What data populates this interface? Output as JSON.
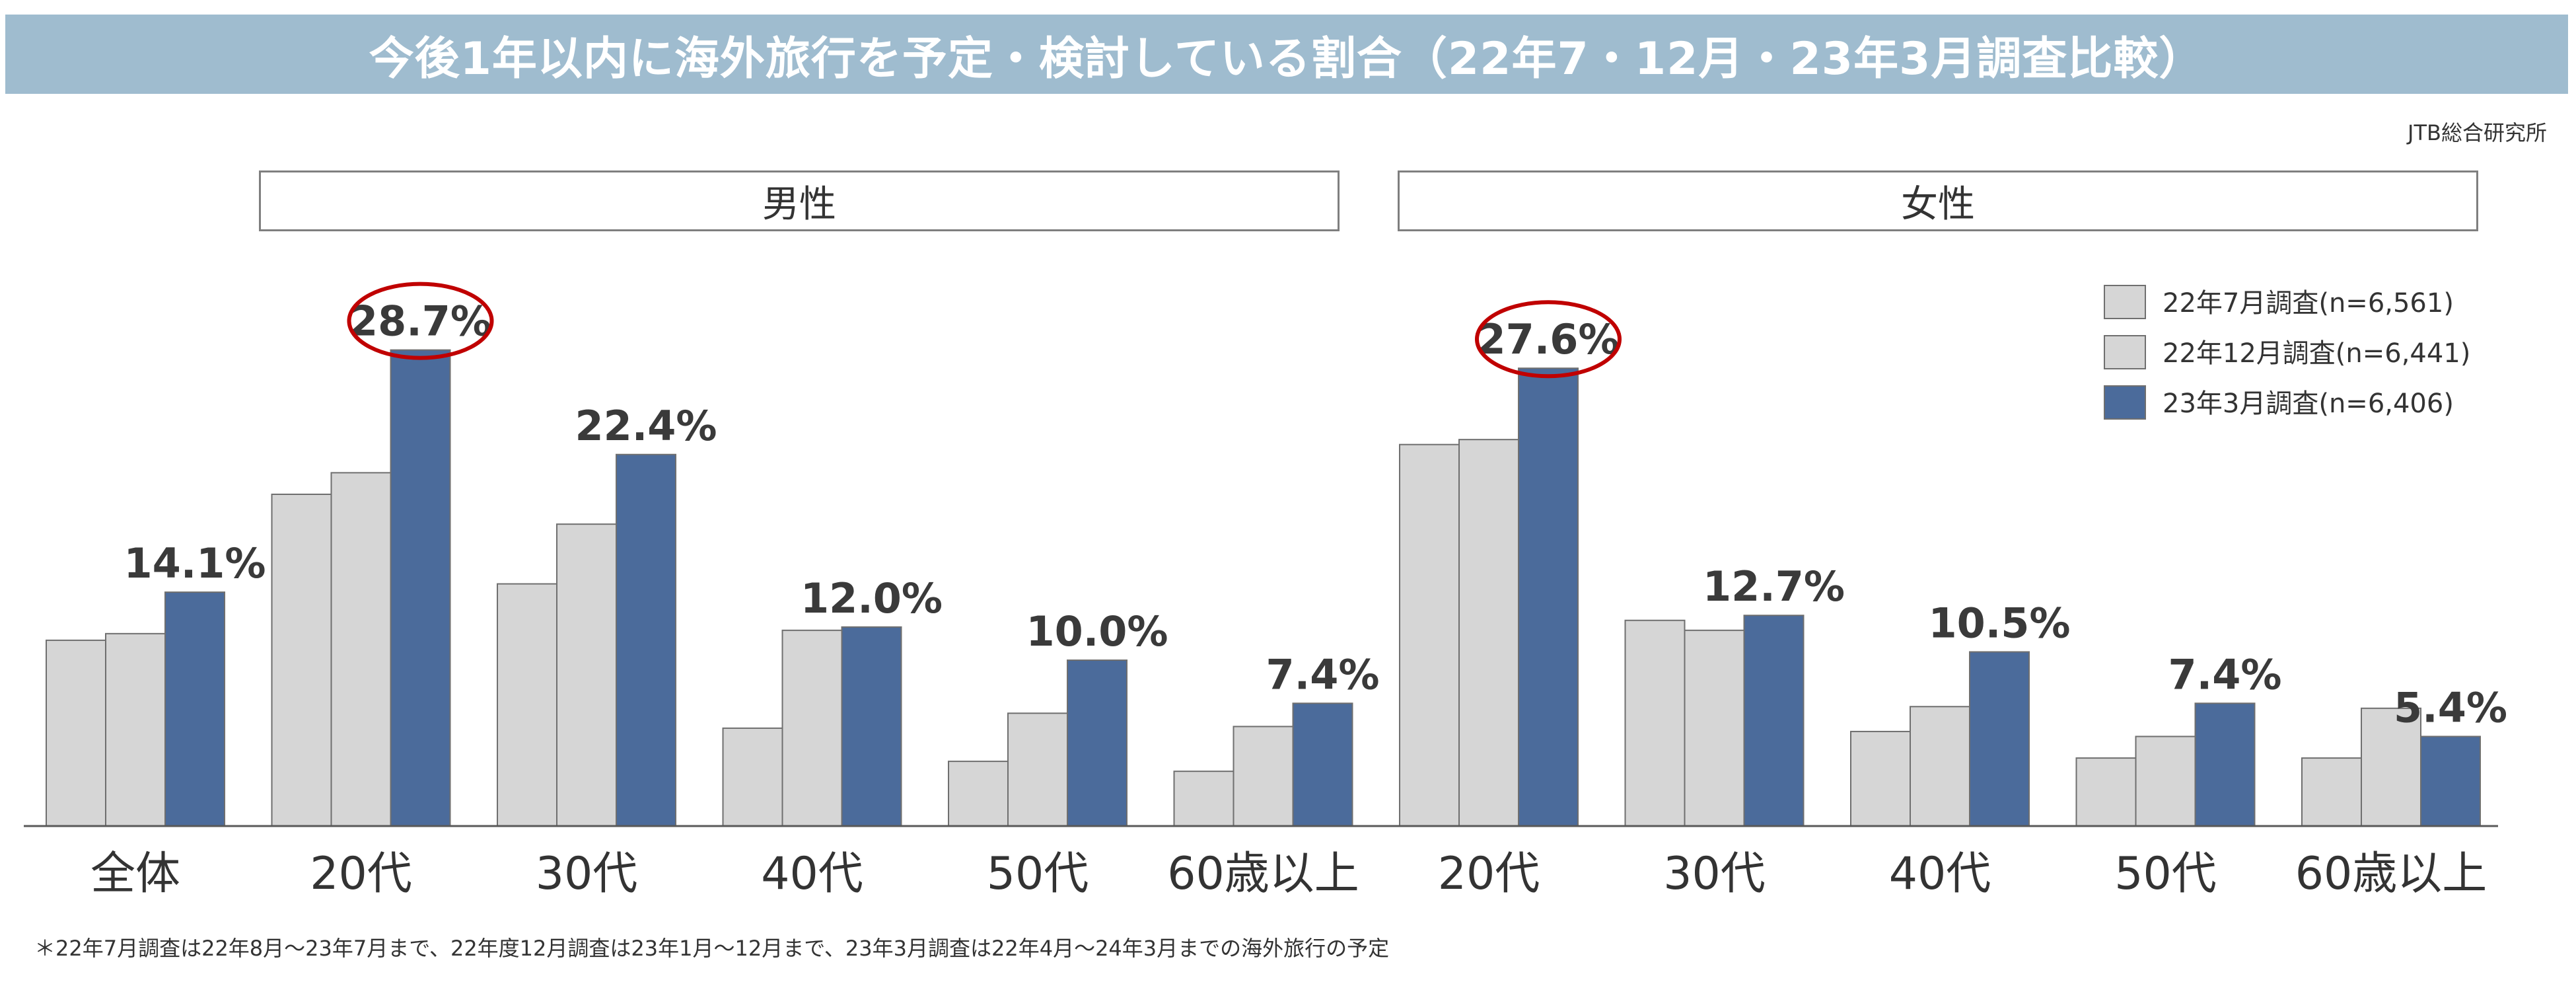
{
  "title": "今後1年以内に海外旅行を予定・検討している割合（22年7・12月・23年3月調査比較）",
  "source": "JTB総合研究所",
  "footnote": "＊22年7月調査は22年8月～23年7月まで、22年度12月調査は23年1月～12月まで、23年3月調査は22年4月～24年3月までの海外旅行の予定",
  "groups": [
    "男性",
    "女性"
  ],
  "colors": {
    "title_bg": "#9fbccf",
    "survey_old": "#d6d6d6",
    "survey_new": "#4b6b9b",
    "highlight": "#c00000"
  },
  "chart_data": {
    "type": "bar",
    "categories": [
      "全体",
      "20代",
      "30代",
      "40代",
      "50代",
      "60歳以上",
      "20代",
      "30代",
      "40代",
      "50代",
      "60歳以上"
    ],
    "category_groups": [
      "",
      "男性",
      "男性",
      "男性",
      "男性",
      "男性",
      "女性",
      "女性",
      "女性",
      "女性",
      "女性"
    ],
    "series": [
      {
        "name": "22年7月調査(n=6,561)",
        "values": [
          11.2,
          20.0,
          14.6,
          5.9,
          3.9,
          3.3,
          23.0,
          12.4,
          5.7,
          4.1,
          4.1
        ]
      },
      {
        "name": "22年12月調査(n=6,441)",
        "values": [
          11.6,
          21.3,
          18.2,
          11.8,
          6.8,
          6.0,
          23.3,
          11.8,
          7.2,
          5.4,
          7.1
        ]
      },
      {
        "name": "23年3月調査(n=6,406)",
        "values": [
          14.1,
          28.7,
          22.4,
          12.0,
          10.0,
          7.4,
          27.6,
          12.7,
          10.5,
          7.4,
          5.4
        ]
      }
    ],
    "value_labels": [
      "14.1%",
      "28.7%",
      "22.4%",
      "12.0%",
      "10.0%",
      "7.4%",
      "27.6%",
      "12.7%",
      "10.5%",
      "7.4%",
      "5.4%"
    ],
    "highlighted": [
      1,
      6
    ],
    "ylim": [
      0,
      33
    ],
    "legend": "top-right",
    "grid": false
  }
}
